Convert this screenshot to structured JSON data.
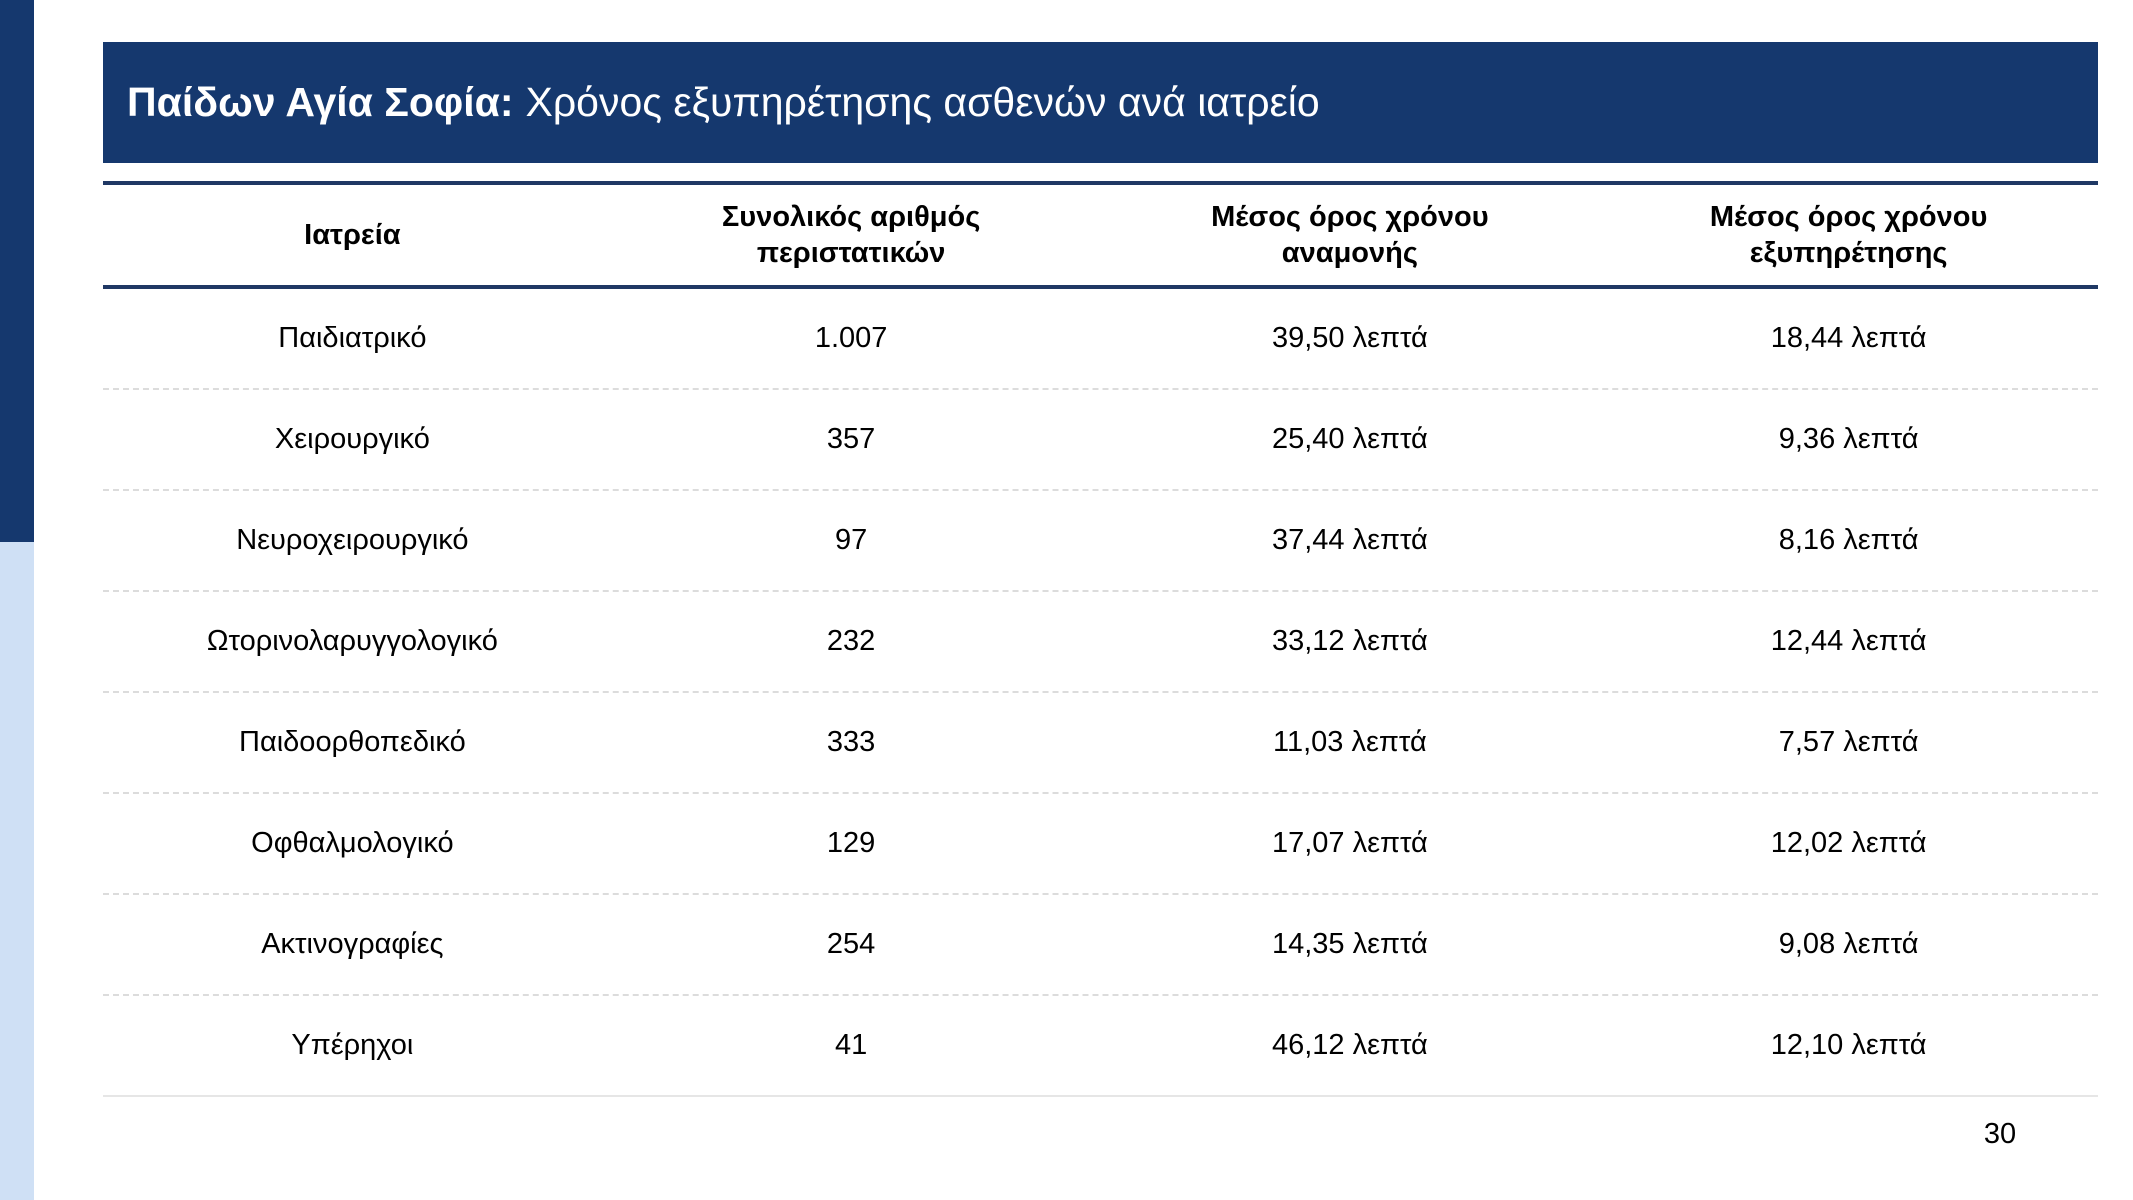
{
  "title": {
    "bold": "Παίδων Αγία Σοφία:",
    "regular": "Χρόνος εξυπηρέτησης ασθενών ανά ιατρείο"
  },
  "colors": {
    "navy": "#15386E",
    "light_blue": "#CFE0F5",
    "separator_gray": "#DCDCDC",
    "text": "#000000",
    "banner_text": "#FFFFFF"
  },
  "table": {
    "headers": [
      "Ιατρεία",
      "Συνολικός αριθμός\nπεριστατικών",
      "Μέσος όρος χρόνου\nαναμονής",
      "Μέσος όρος χρόνου\nεξυπηρέτησης"
    ],
    "rows": [
      [
        "Παιδιατρικό",
        "1.007",
        "39,50 λεπτά",
        "18,44 λεπτά"
      ],
      [
        "Χειρουργικό",
        "357",
        "25,40 λεπτά",
        "9,36 λεπτά"
      ],
      [
        "Νευροχειρουργικό",
        "97",
        "37,44 λεπτά",
        "8,16 λεπτά"
      ],
      [
        "Ωτορινολαρυγγολογικό",
        "232",
        "33,12 λεπτά",
        "12,44 λεπτά"
      ],
      [
        "Παιδοορθοπεδικό",
        "333",
        "11,03 λεπτά",
        "7,57 λεπτά"
      ],
      [
        "Οφθαλμολογικό",
        "129",
        "17,07 λεπτά",
        "12,02 λεπτά"
      ],
      [
        "Ακτινογραφίες",
        "254",
        "14,35 λεπτά",
        "9,08 λεπτά"
      ],
      [
        "Υπέρηχοι",
        "41",
        "46,12 λεπτά",
        "12,10 λεπτά"
      ]
    ]
  },
  "page_number": "30"
}
